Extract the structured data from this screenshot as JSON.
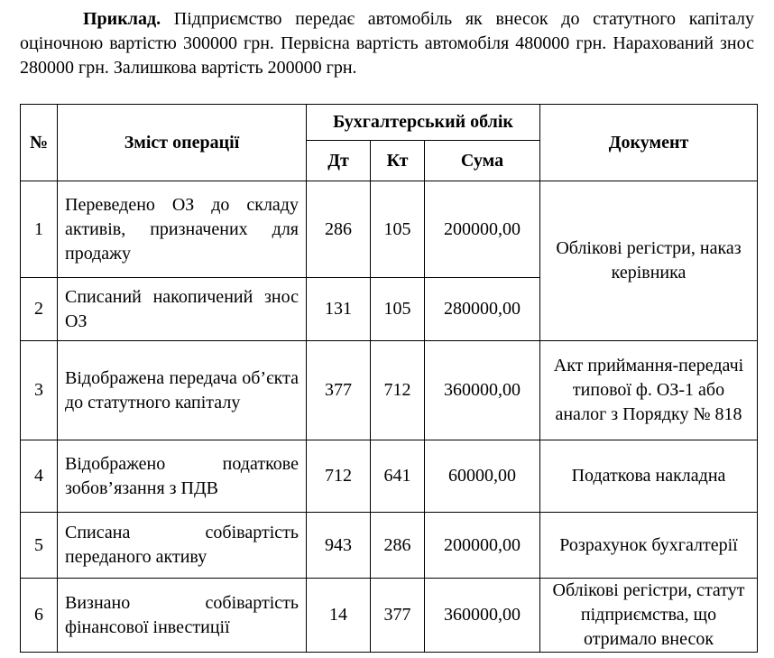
{
  "paragraph": {
    "lead": "Приклад.",
    "text": "Підприємство передає автомобіль як внесок до статутного капіталу оціночною вартістю 300000 грн. Первісна вартість автомобіля 480000 грн. Нарахований знос 280000 грн. Залишкова вартість 200000 грн."
  },
  "table": {
    "headers": {
      "number": "№",
      "operation": "Зміст операції",
      "accounting": "Бухгалтерський облік",
      "debit": "Дт",
      "credit": "Кт",
      "amount": "Сума",
      "document": "Документ"
    },
    "rows": [
      {
        "number": "1",
        "operation": "Переведено ОЗ до складу активів, призначених для продажу",
        "debit": "286",
        "credit": "105",
        "amount": "200000,00",
        "document": "Облікові регістри, наказ керівника"
      },
      {
        "number": "2",
        "operation": "Списаний накопичений знос ОЗ",
        "debit": "131",
        "credit": "105",
        "amount": "280000,00"
      },
      {
        "number": "3",
        "operation": "Відображена передача об’єкта до статутного капіталу",
        "debit": "377",
        "credit": "712",
        "amount": "360000,00",
        "document": "Акт приймання-передачі типової ф. ОЗ-1 або аналог з Порядку № 818"
      },
      {
        "number": "4",
        "operation": "Відображено податкове зобов’язання з ПДВ",
        "debit": "712",
        "credit": "641",
        "amount": "60000,00",
        "document": "Податкова накладна"
      },
      {
        "number": "5",
        "operation": "Списана собівартість переданого активу",
        "debit": "943",
        "credit": "286",
        "amount": "200000,00",
        "document": "Розрахунок бухгалтерії"
      },
      {
        "number": "6",
        "operation": "Визнано собівартість фінансової інвестиції",
        "debit": "14",
        "credit": "377",
        "amount": "360000,00",
        "document": "Облікові регістри, статут підприємства, що отримало внесок"
      }
    ]
  }
}
